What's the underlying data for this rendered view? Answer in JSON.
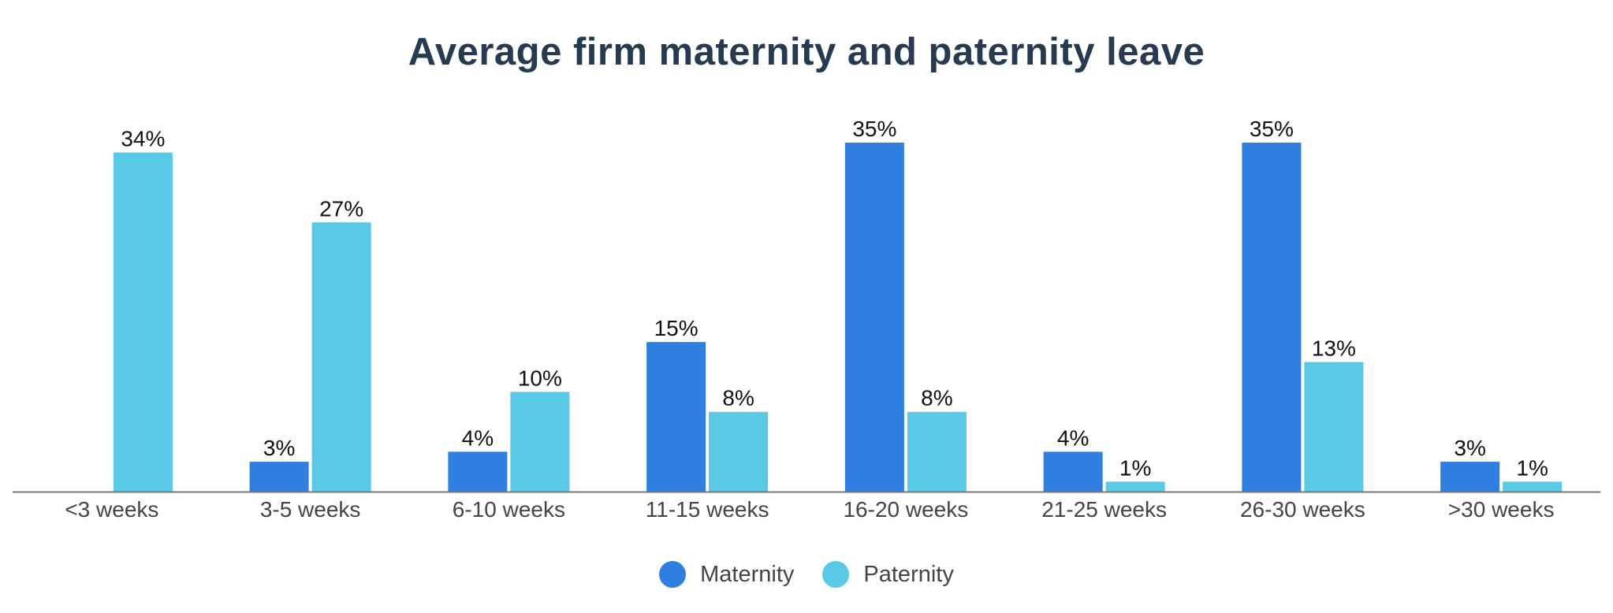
{
  "chart_data": {
    "type": "bar",
    "title": "Average firm maternity and paternity leave",
    "categories": [
      "<3 weeks",
      "3-5 weeks",
      "6-10 weeks",
      "11-15 weeks",
      "16-20 weeks",
      "21-25 weeks",
      "26-30 weeks",
      ">30 weeks"
    ],
    "series": [
      {
        "name": "Maternity",
        "color": "#2f7fe1",
        "values": [
          null,
          3,
          4,
          15,
          35,
          4,
          35,
          3
        ],
        "labels": [
          "",
          "3%",
          "4%",
          "15%",
          "35%",
          "4%",
          "35%",
          "3%"
        ]
      },
      {
        "name": "Paternity",
        "color": "#5ac9e6",
        "values": [
          34,
          27,
          10,
          8,
          8,
          1,
          13,
          1
        ],
        "labels": [
          "34%",
          "27%",
          "10%",
          "8%",
          "8%",
          "1%",
          "13%",
          "1%"
        ]
      }
    ],
    "ylim": [
      0,
      35
    ],
    "grid": false,
    "legend_position": "bottom-center"
  }
}
